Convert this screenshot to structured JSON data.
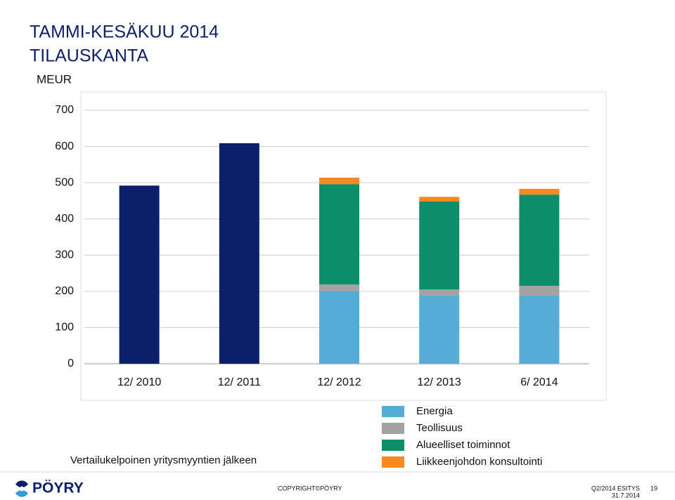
{
  "chart_data": {
    "type": "stacked_bar",
    "title": "TAMMI-KESÄKUU 2014",
    "subtitle": "TILAUSKANTA",
    "ylabel": "MEUR",
    "note": "Vertailukelpoinen yritysmyyntien jälkeen",
    "categories": [
      "12/ 2010",
      "12/ 2011",
      "12/ 2012",
      "12/ 2013",
      "6/ 2014"
    ],
    "series": [
      {
        "color": "#0b1f6a",
        "values": [
          492,
          609,
          null,
          null,
          null
        ]
      },
      {
        "name": "Energia",
        "color": "#55acd6",
        "values": [
          null,
          null,
          200,
          188,
          188
        ]
      },
      {
        "name": "Teollisuus",
        "color": "#a3a3a3",
        "values": [
          null,
          null,
          19,
          17,
          27
        ]
      },
      {
        "name": "Alueelliset toiminnot",
        "color": "#0a8f6a",
        "values": [
          null,
          null,
          277,
          243,
          252
        ]
      },
      {
        "name": "Liikkeenjohdon konsultointi",
        "color": "#f7891f",
        "values": [
          null,
          null,
          18,
          13,
          16
        ]
      }
    ],
    "ylim": [
      0,
      700
    ],
    "yticks": [
      0,
      100,
      200,
      300,
      400,
      500,
      600,
      700
    ],
    "grid": true
  },
  "footer": {
    "logo": "PÖYRY",
    "copyright": "COPYRIGHT©PÖYRY",
    "presentation": "Q2/2014 ESITYS",
    "date": "31.7.2014",
    "page": "19"
  }
}
